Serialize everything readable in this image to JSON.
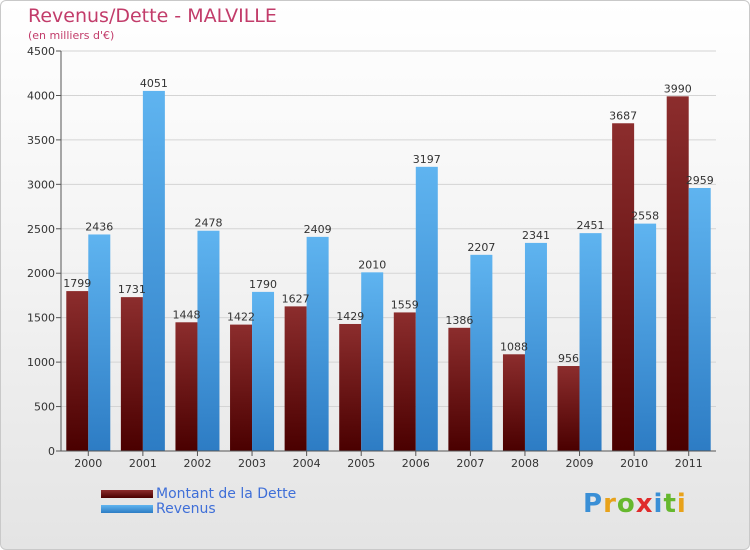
{
  "header": {
    "title": "Revenus/Dette - MALVILLE",
    "subtitle": "(en milliers d'€)"
  },
  "legend": {
    "items": [
      {
        "label": "Montant de la Dette",
        "color": "#7a1f24"
      },
      {
        "label": "Revenus",
        "color": "#4da6e8"
      }
    ]
  },
  "logo": {
    "text": "Proxiti"
  },
  "colors": {
    "dette_top": "#8c2d2d",
    "dette_bottom": "#4a0000",
    "revenus_top": "#5fb4f0",
    "revenus_bottom": "#2d7cc4",
    "title": "#c23c6a",
    "legend_text": "#3f6fd8"
  },
  "chart_data": {
    "type": "bar",
    "categories": [
      "2000",
      "2001",
      "2002",
      "2003",
      "2004",
      "2005",
      "2006",
      "2007",
      "2008",
      "2009",
      "2010",
      "2011"
    ],
    "series": [
      {
        "name": "Montant de la Dette",
        "values": [
          1799,
          1731,
          1448,
          1422,
          1627,
          1429,
          1559,
          1386,
          1088,
          956,
          3687,
          3990
        ]
      },
      {
        "name": "Revenus",
        "values": [
          2436,
          4051,
          2478,
          1790,
          2409,
          2010,
          3197,
          2207,
          2341,
          2451,
          2558,
          2959
        ]
      }
    ],
    "data_labels": {
      "Montant de la Dette": [
        "1799",
        "1731",
        "1448",
        "1422",
        "1627",
        "1429",
        "1559",
        "1386",
        "1088",
        "956",
        "3687",
        "3990"
      ],
      "Revenus": [
        "2436",
        "4051",
        "2478",
        "1790",
        "2409",
        "2010",
        "3197",
        "2207",
        "2341",
        "2451",
        "2558",
        "2959"
      ]
    },
    "yticks": [
      0,
      500,
      1000,
      1500,
      2000,
      2500,
      3000,
      3500,
      4000,
      4500
    ],
    "ylim": [
      0,
      4500
    ],
    "grid": true
  }
}
